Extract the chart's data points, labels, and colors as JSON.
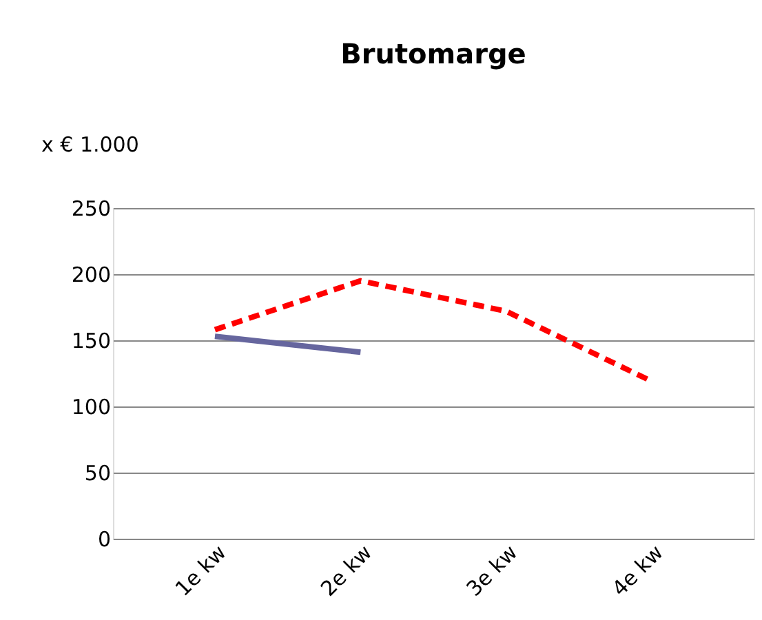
{
  "chart_data": {
    "type": "line",
    "title": "Brutomarge",
    "ylabel": "x € 1.000",
    "categories": [
      "1e kw",
      "2e kw",
      "3e kw",
      "4e kw"
    ],
    "series": [
      {
        "color": "#ff0000",
        "line_style": "dashed",
        "values": [
          158,
          195,
          172,
          119
        ]
      },
      {
        "color": "#66669e",
        "line_style": "solid",
        "values": [
          153,
          141,
          null,
          null
        ]
      }
    ],
    "ylim": [
      0,
      250
    ],
    "yticks": [
      0,
      50,
      100,
      150,
      200,
      250
    ],
    "grid": "y",
    "marker": "none"
  }
}
